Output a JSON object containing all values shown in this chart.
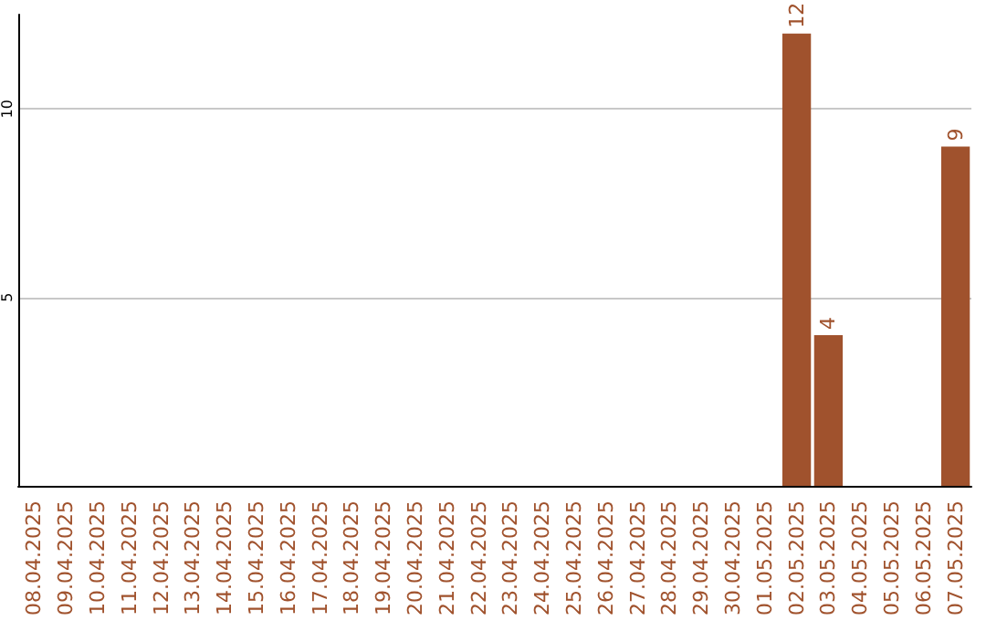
{
  "chart_data": {
    "type": "bar",
    "categories": [
      "08.04.2025",
      "09.04.2025",
      "10.04.2025",
      "11.04.2025",
      "12.04.2025",
      "13.04.2025",
      "14.04.2025",
      "15.04.2025",
      "16.04.2025",
      "17.04.2025",
      "18.04.2025",
      "19.04.2025",
      "20.04.2025",
      "21.04.2025",
      "22.04.2025",
      "23.04.2025",
      "24.04.2025",
      "25.04.2025",
      "26.04.2025",
      "27.04.2025",
      "28.04.2025",
      "29.04.2025",
      "30.04.2025",
      "01.05.2025",
      "02.05.2025",
      "03.05.2025",
      "04.05.2025",
      "05.05.2025",
      "06.05.2025",
      "07.05.2025"
    ],
    "values": [
      0,
      0,
      0,
      0,
      0,
      0,
      0,
      0,
      0,
      0,
      0,
      0,
      0,
      0,
      0,
      0,
      0,
      0,
      0,
      0,
      0,
      0,
      0,
      0,
      12,
      4,
      0,
      0,
      0,
      9
    ],
    "value_labels": [
      null,
      null,
      null,
      null,
      null,
      null,
      null,
      null,
      null,
      null,
      null,
      null,
      null,
      null,
      null,
      null,
      null,
      null,
      null,
      null,
      null,
      null,
      null,
      null,
      "12",
      "4",
      null,
      null,
      null,
      "9"
    ],
    "color": "#a0522d",
    "ylim": [
      0,
      12.5
    ],
    "yticks": [
      5,
      10
    ],
    "grid": "y"
  }
}
